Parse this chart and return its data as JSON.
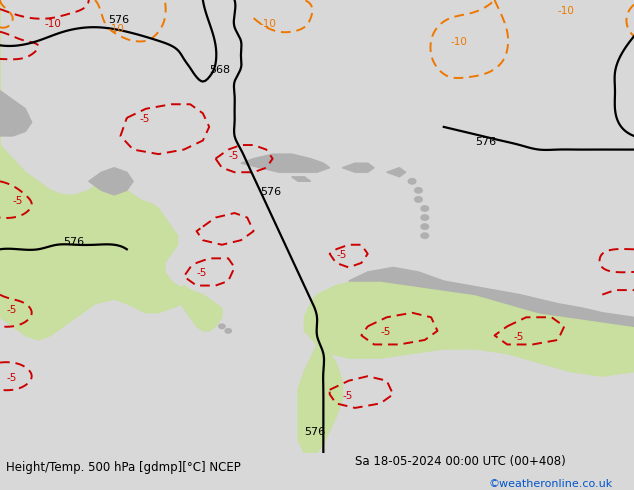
{
  "title_left": "Height/Temp. 500 hPa [gdmp][°C] NCEP",
  "title_right": "Sa 18-05-2024 00:00 UTC (00+408)",
  "credit": "©weatheronline.co.uk",
  "bg_color": "#d8d8d8",
  "land_green_color": "#c8dfa0",
  "land_gray_color": "#b0b0b0",
  "black_color": "#000000",
  "red_color": "#cc0000",
  "orange_color": "#ee7700",
  "figsize": [
    6.34,
    4.9
  ],
  "dpi": 100
}
